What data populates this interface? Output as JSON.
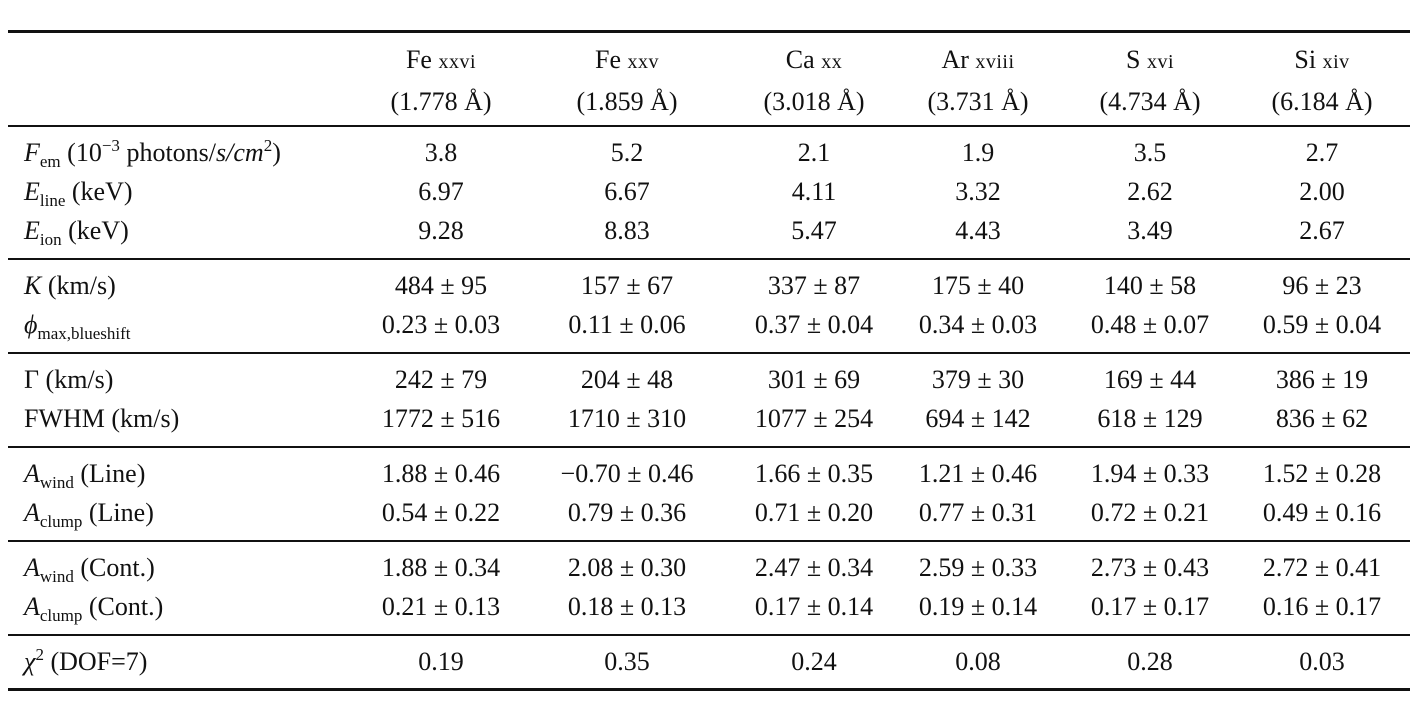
{
  "headers": [
    {
      "element": "Fe",
      "ion": "xxvi",
      "wavelength": "(1.778 Å)"
    },
    {
      "element": "Fe",
      "ion": "xxv",
      "wavelength": "(1.859 Å)"
    },
    {
      "element": "Ca",
      "ion": "xx",
      "wavelength": "(3.018 Å)"
    },
    {
      "element": "Ar",
      "ion": "xviii",
      "wavelength": "(3.731 Å)"
    },
    {
      "element": "S",
      "ion": "xvi",
      "wavelength": "(4.734 Å)"
    },
    {
      "element": "Si",
      "ion": "xiv",
      "wavelength": "(6.184 Å)"
    }
  ],
  "rows": [
    {
      "sym": "F",
      "sub": "em",
      "sup_pre": "−3",
      "rest_a": " (10",
      "rest_b": " photons/",
      "rest_c": "s/cm",
      "sup2": "2",
      "rest_d": ")",
      "values": [
        "3.8",
        "5.2",
        "2.1",
        "1.9",
        "3.5",
        "2.7"
      ]
    },
    {
      "sym": "E",
      "sub": "line",
      "tail": " (keV)",
      "values": [
        "6.97",
        "6.67",
        "4.11",
        "3.32",
        "2.62",
        "2.00"
      ]
    },
    {
      "sym": "E",
      "sub": "ion",
      "tail": " (keV)",
      "values": [
        "9.28",
        "8.83",
        "5.47",
        "4.43",
        "3.49",
        "2.67"
      ]
    },
    {
      "sym": "K",
      "sub": "",
      "tail": " (km/s)",
      "values": [
        "484 ± 95",
        "157 ± 67",
        "337 ± 87",
        "175 ± 40",
        "140 ± 58",
        "96 ± 23"
      ]
    },
    {
      "sym": "ϕ",
      "sub": "max,blueshift",
      "tail": "",
      "values": [
        "0.23 ± 0.03",
        "0.11 ± 0.06",
        "0.37 ± 0.04",
        "0.34 ± 0.03",
        "0.48 ± 0.07",
        "0.59 ± 0.04"
      ]
    },
    {
      "sym": "",
      "plain": "Γ (km/s)",
      "values": [
        "242 ± 79",
        "204 ± 48",
        "301 ± 69",
        "379 ± 30",
        "169 ± 44",
        "386 ± 19"
      ]
    },
    {
      "sym": "",
      "plain": "FWHM (km/s)",
      "values": [
        "1772 ± 516",
        "1710 ± 310",
        "1077 ± 254",
        "694 ± 142",
        "618 ± 129",
        "836 ± 62"
      ]
    },
    {
      "sym": "A",
      "sub": "wind",
      "tail": " (Line)",
      "values": [
        "1.88 ± 0.46",
        "−0.70 ± 0.46",
        "1.66 ± 0.35",
        "1.21 ± 0.46",
        "1.94 ± 0.33",
        "1.52 ± 0.28"
      ]
    },
    {
      "sym": "A",
      "sub": "clump",
      "tail": " (Line)",
      "values": [
        "0.54 ± 0.22",
        "0.79 ± 0.36",
        "0.71 ± 0.20",
        "0.77 ± 0.31",
        "0.72 ± 0.21",
        "0.49 ± 0.16"
      ]
    },
    {
      "sym": "A",
      "sub": "wind",
      "tail": " (Cont.)",
      "values": [
        "1.88 ± 0.34",
        "2.08 ± 0.30",
        "2.47 ± 0.34",
        "2.59 ± 0.33",
        "2.73 ± 0.43",
        "2.72 ± 0.41"
      ]
    },
    {
      "sym": "A",
      "sub": "clump",
      "tail": " (Cont.)",
      "values": [
        "0.21 ± 0.13",
        "0.18 ± 0.13",
        "0.17 ± 0.14",
        "0.19 ± 0.14",
        "0.17 ± 0.17",
        "0.16 ± 0.17"
      ]
    },
    {
      "sym": "χ",
      "supsym": "2",
      "tail": " (DOF=7)",
      "values": [
        "0.19",
        "0.35",
        "0.24",
        "0.08",
        "0.28",
        "0.03"
      ]
    }
  ]
}
